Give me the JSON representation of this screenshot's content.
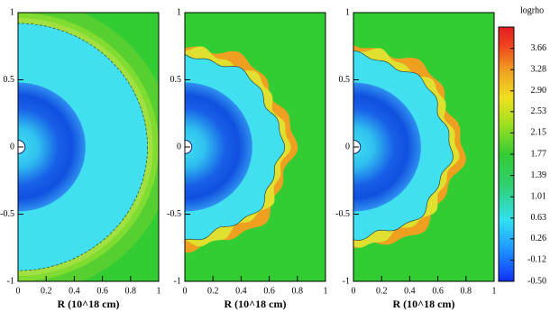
{
  "chart_data": [
    {
      "type": "heatmap",
      "xlabel": "R (10^18 cm)",
      "xlim": [
        0,
        1
      ],
      "ylim": [
        -1,
        1
      ],
      "xticks": [
        0,
        0.2,
        0.4,
        0.6,
        0.8,
        1
      ],
      "yticks": [
        -1,
        -0.5,
        0,
        0.5,
        1
      ]
    },
    {
      "type": "heatmap",
      "xlabel": "R (10^18 cm)",
      "xlim": [
        0,
        1
      ],
      "ylim": [
        -1,
        1
      ],
      "xticks": [
        0,
        0.2,
        0.4,
        0.6,
        0.8,
        1
      ],
      "yticks": [
        -1,
        -0.5,
        0,
        0.5,
        1
      ]
    },
    {
      "type": "heatmap",
      "xlabel": "R (10^18 cm)",
      "xlim": [
        0,
        1
      ],
      "ylim": [
        -1,
        1
      ],
      "xticks": [
        0,
        0.2,
        0.4,
        0.6,
        0.8,
        1
      ],
      "yticks": [
        -1,
        -0.5,
        0,
        0.5,
        1
      ]
    },
    {
      "type": "colorbar",
      "title": "logrho",
      "zlim": [
        -0.5,
        4.04
      ],
      "zticks": [
        3.66,
        3.28,
        {
          "value": 2.9,
          "label": "2.90"
        },
        2.53,
        2.15,
        1.77,
        1.39,
        1.01,
        0.63,
        0.26,
        -0.12,
        {
          "value": -0.5,
          "label": "-0.50"
        }
      ]
    }
  ]
}
